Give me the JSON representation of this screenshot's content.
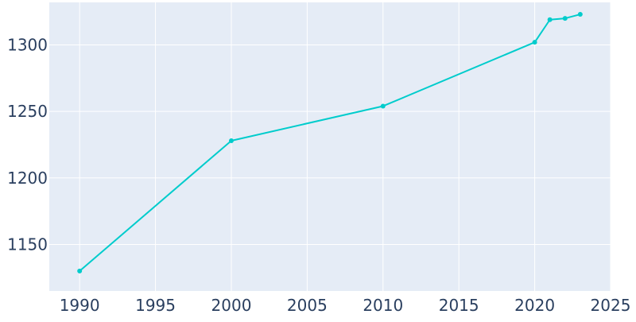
{
  "chart_data": {
    "type": "line",
    "title": "",
    "xlabel": "",
    "ylabel": "",
    "xlim": [
      1988,
      2025
    ],
    "ylim": [
      1115,
      1332
    ],
    "x_ticks": [
      1990,
      1995,
      2000,
      2005,
      2010,
      2015,
      2020,
      2025
    ],
    "y_ticks": [
      1150,
      1200,
      1250,
      1300
    ],
    "grid": true,
    "legend": "none",
    "series": [
      {
        "x": [
          1990,
          2000,
          2010,
          2020,
          2021,
          2022,
          2023
        ],
        "y": [
          1130,
          1228,
          1254,
          1302,
          1319,
          1320,
          1323
        ]
      }
    ],
    "colors": {
      "plot_background": "#e5ecf6",
      "grid": "#ffffff",
      "line": "#00cccc",
      "tick_text": "#2a3f5f"
    }
  }
}
